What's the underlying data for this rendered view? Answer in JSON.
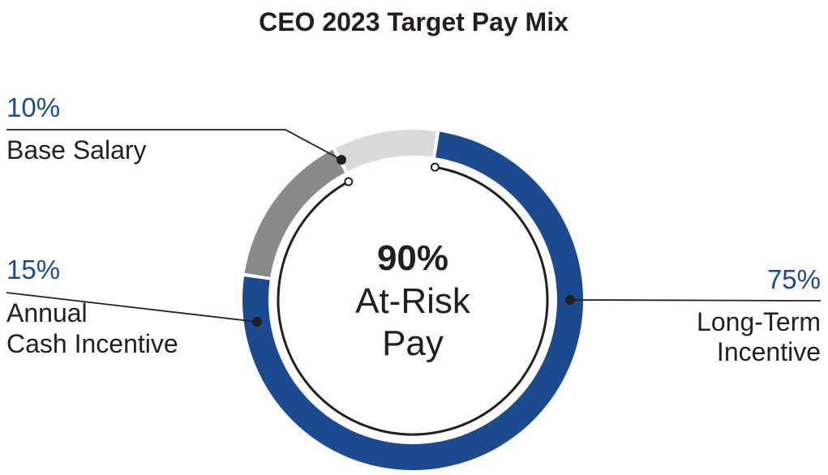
{
  "chart_data": {
    "type": "pie",
    "title": "CEO 2023 Target Pay Mix",
    "center": {
      "value": "90%",
      "line1": "At-Risk",
      "line2": "Pay"
    },
    "slices": [
      {
        "label_lines": [
          "Long-Term",
          "Incentive"
        ],
        "value": 75,
        "value_label": "75%",
        "color": "#1b4a8e"
      },
      {
        "label_lines": [
          "Annual",
          "Cash Incentive"
        ],
        "value": 15,
        "value_label": "15%",
        "color": "#8a8a8c"
      },
      {
        "label_lines": [
          "Base Salary"
        ],
        "value": 10,
        "value_label": "10%",
        "color": "#d9dadb"
      }
    ],
    "colors": {
      "text": "#231f20",
      "accent": "#1b4a8e",
      "leader": "#231f20"
    }
  }
}
